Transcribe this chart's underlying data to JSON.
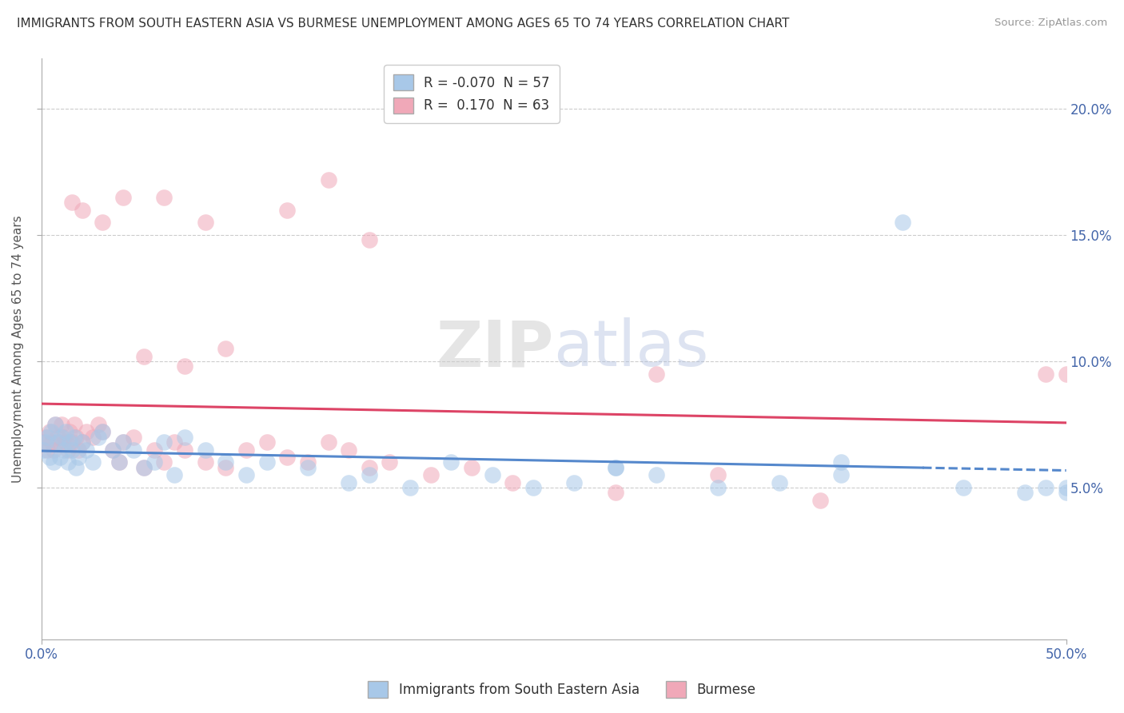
{
  "title": "IMMIGRANTS FROM SOUTH EASTERN ASIA VS BURMESE UNEMPLOYMENT AMONG AGES 65 TO 74 YEARS CORRELATION CHART",
  "source": "Source: ZipAtlas.com",
  "ylabel": "Unemployment Among Ages 65 to 74 years",
  "legend1_label": "R = -0.070  N = 57",
  "legend2_label": "R =  0.170  N = 63",
  "legend1_color": "#a8c8e8",
  "legend2_color": "#f0a8b8",
  "line1_color": "#5588cc",
  "line2_color": "#dd4466",
  "xlim": [
    0.0,
    0.5
  ],
  "ylim": [
    -0.01,
    0.22
  ],
  "yticks": [
    0.05,
    0.1,
    0.15,
    0.2
  ],
  "ytick_labels": [
    "5.0%",
    "10.0%",
    "15.0%",
    "20.0%"
  ],
  "grid_color": "#cccccc",
  "background_color": "#ffffff",
  "blue_scatter_x": [
    0.001,
    0.002,
    0.003,
    0.004,
    0.005,
    0.006,
    0.007,
    0.008,
    0.009,
    0.01,
    0.011,
    0.012,
    0.013,
    0.014,
    0.015,
    0.016,
    0.017,
    0.018,
    0.02,
    0.022,
    0.025,
    0.028,
    0.03,
    0.035,
    0.038,
    0.04,
    0.045,
    0.05,
    0.055,
    0.06,
    0.065,
    0.07,
    0.08,
    0.09,
    0.1,
    0.11,
    0.13,
    0.15,
    0.16,
    0.18,
    0.2,
    0.22,
    0.24,
    0.26,
    0.28,
    0.3,
    0.33,
    0.36,
    0.39,
    0.42,
    0.45,
    0.48,
    0.49,
    0.5,
    0.5,
    0.39,
    0.28
  ],
  "blue_scatter_y": [
    0.065,
    0.068,
    0.07,
    0.062,
    0.072,
    0.06,
    0.075,
    0.068,
    0.062,
    0.07,
    0.065,
    0.072,
    0.06,
    0.068,
    0.065,
    0.07,
    0.058,
    0.062,
    0.068,
    0.065,
    0.06,
    0.07,
    0.072,
    0.065,
    0.06,
    0.068,
    0.065,
    0.058,
    0.06,
    0.068,
    0.055,
    0.07,
    0.065,
    0.06,
    0.055,
    0.06,
    0.058,
    0.052,
    0.055,
    0.05,
    0.06,
    0.055,
    0.05,
    0.052,
    0.058,
    0.055,
    0.05,
    0.052,
    0.055,
    0.155,
    0.05,
    0.048,
    0.05,
    0.05,
    0.048,
    0.06,
    0.058
  ],
  "pink_scatter_x": [
    0.001,
    0.002,
    0.003,
    0.004,
    0.005,
    0.006,
    0.007,
    0.008,
    0.009,
    0.01,
    0.011,
    0.012,
    0.013,
    0.014,
    0.015,
    0.016,
    0.017,
    0.018,
    0.02,
    0.022,
    0.025,
    0.028,
    0.03,
    0.035,
    0.038,
    0.04,
    0.045,
    0.05,
    0.055,
    0.06,
    0.065,
    0.07,
    0.08,
    0.09,
    0.1,
    0.11,
    0.12,
    0.13,
    0.14,
    0.15,
    0.16,
    0.17,
    0.19,
    0.21,
    0.23,
    0.28,
    0.14,
    0.12,
    0.08,
    0.06,
    0.04,
    0.03,
    0.02,
    0.015,
    0.05,
    0.07,
    0.09,
    0.16,
    0.49,
    0.3,
    0.33,
    0.38,
    0.5
  ],
  "pink_scatter_y": [
    0.068,
    0.07,
    0.065,
    0.072,
    0.068,
    0.065,
    0.075,
    0.07,
    0.068,
    0.075,
    0.07,
    0.068,
    0.065,
    0.072,
    0.068,
    0.075,
    0.07,
    0.065,
    0.068,
    0.072,
    0.07,
    0.075,
    0.072,
    0.065,
    0.06,
    0.068,
    0.07,
    0.058,
    0.065,
    0.06,
    0.068,
    0.065,
    0.06,
    0.058,
    0.065,
    0.068,
    0.062,
    0.06,
    0.068,
    0.065,
    0.058,
    0.06,
    0.055,
    0.058,
    0.052,
    0.048,
    0.172,
    0.16,
    0.155,
    0.165,
    0.165,
    0.155,
    0.16,
    0.163,
    0.102,
    0.098,
    0.105,
    0.148,
    0.095,
    0.095,
    0.055,
    0.045,
    0.095
  ]
}
